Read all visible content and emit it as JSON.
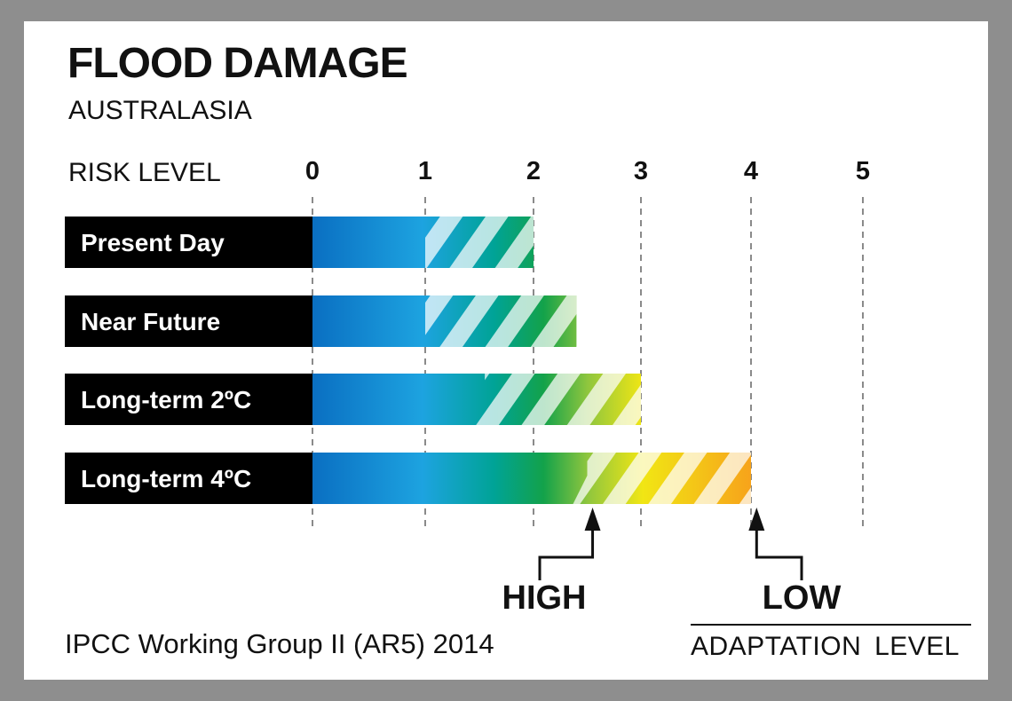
{
  "chart_data": {
    "type": "bar",
    "title": "FLOOD DAMAGE",
    "subtitle": "AUSTRALASIA",
    "ylabel": "RISK LEVEL",
    "xlim": [
      0,
      5
    ],
    "x_ticks": [
      "0",
      "1",
      "2",
      "3",
      "4",
      "5"
    ],
    "grid": "dashed vertical",
    "categories": [
      "Present Day",
      "Near Future",
      "Long-term 2ºC",
      "Long-term 4ºC"
    ],
    "series": [
      {
        "name": "HIGH",
        "values": [
          1.0,
          1.0,
          1.55,
          2.5
        ]
      },
      {
        "name": "LOW",
        "values": [
          2.0,
          2.4,
          3.0,
          4.0
        ]
      }
    ],
    "markers": [
      {
        "label": "HIGH",
        "value": 2.55
      },
      {
        "label": "LOW",
        "value": 4.05
      }
    ],
    "legend_title": "ADAPTATION LEVEL",
    "source": "IPCC Working Group II (AR5) 2014",
    "colors": {
      "background": "#8e8e8e",
      "card": "#ffffff",
      "label_box": "#000000",
      "gradient": [
        "#0a6fc2",
        "#1da3e0",
        "#00a396",
        "#13a24a",
        "#8fc63e",
        "#f1e614",
        "#f7a21b"
      ]
    }
  }
}
